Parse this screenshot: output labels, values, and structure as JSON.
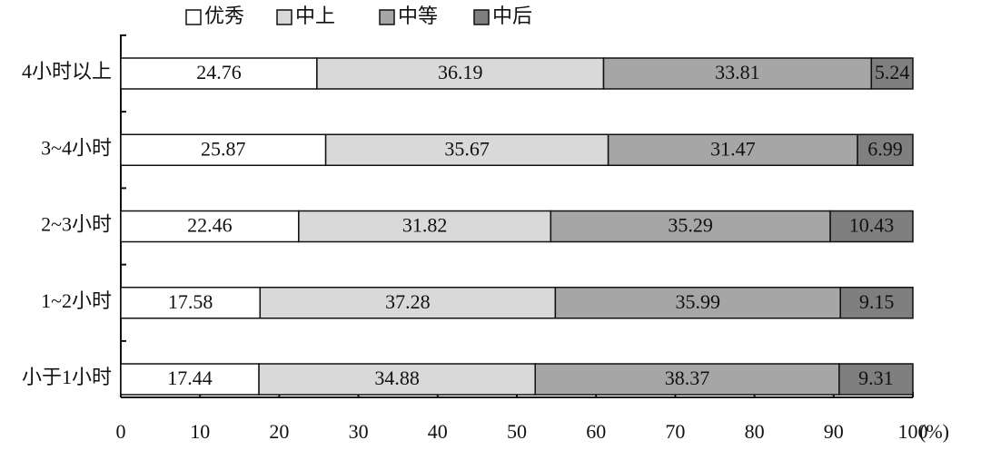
{
  "chart_data": {
    "type": "stacked_bar_horizontal",
    "categories": [
      "4小时以上",
      "3~4小时",
      "2~3小时",
      "1~2小时",
      "小于1小时"
    ],
    "series": [
      {
        "name": "优秀",
        "color": "#ffffff",
        "values": [
          24.76,
          25.87,
          22.46,
          17.58,
          17.44
        ]
      },
      {
        "name": "中上",
        "color": "#d9d9d9",
        "values": [
          36.19,
          35.67,
          31.82,
          37.28,
          34.88
        ]
      },
      {
        "name": "中等",
        "color": "#a6a6a6",
        "values": [
          33.81,
          31.47,
          35.29,
          35.99,
          38.37
        ]
      },
      {
        "name": "中后",
        "color": "#7f7f7f",
        "values": [
          5.24,
          6.99,
          10.43,
          9.15,
          9.31
        ]
      }
    ],
    "xlabel": "(%)",
    "xlim": [
      0,
      100
    ],
    "xticks": [
      0,
      10,
      20,
      30,
      40,
      50,
      60,
      70,
      80,
      90,
      100
    ],
    "legend": "top"
  }
}
